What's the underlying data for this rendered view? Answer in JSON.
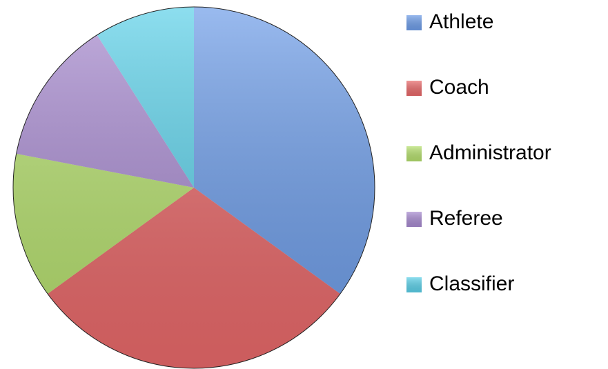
{
  "chart_data": {
    "type": "pie",
    "categories": [
      "Athlete",
      "Coach",
      "Administrator",
      "Referee",
      "Classifier"
    ],
    "values": [
      35,
      30,
      13,
      13,
      9
    ],
    "colors": [
      "#6e9de8",
      "#e8696a",
      "#b5df6e",
      "#a88bd0",
      "#5cd0e8"
    ],
    "legend": "right"
  }
}
